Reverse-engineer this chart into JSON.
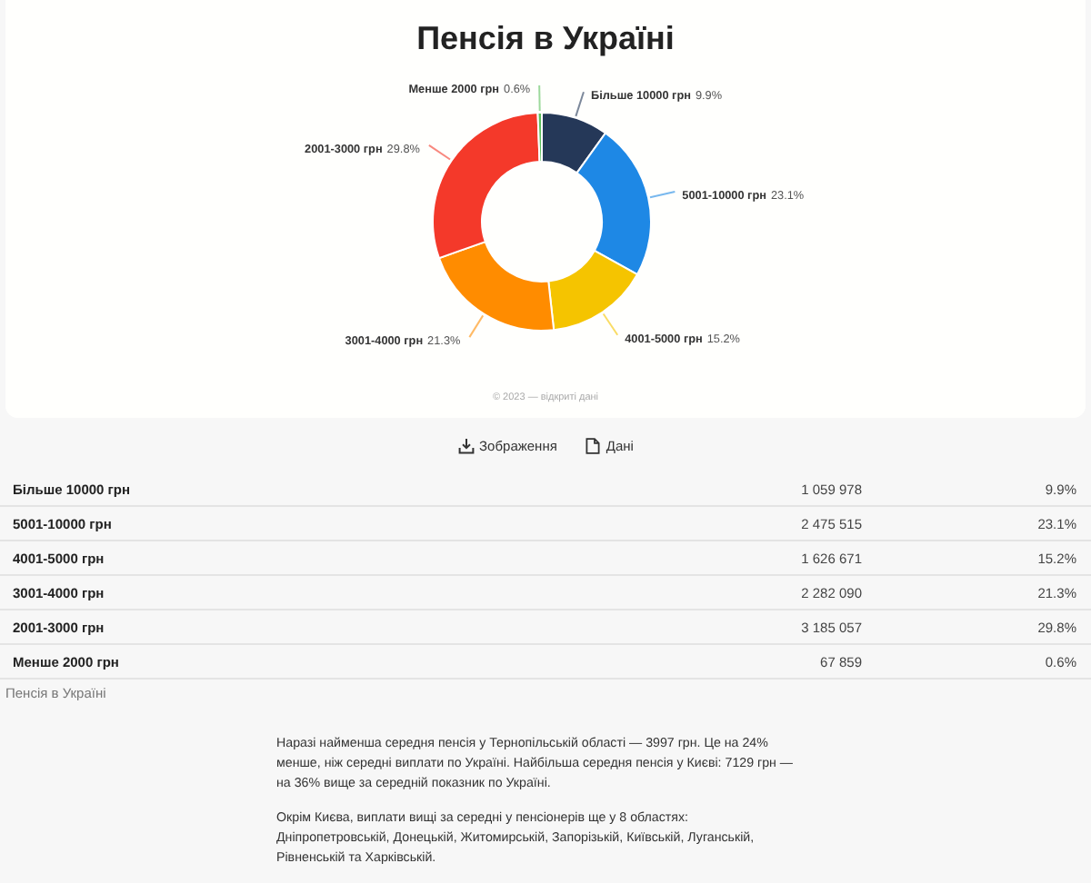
{
  "chart_data": [
    {
      "type": "donut",
      "title": "Пенсія в Україні",
      "categories": [
        "Більше 10000 грн",
        "5001-10000 грн",
        "4001-5000 грн",
        "3001-4000 грн",
        "2001-3000 грн",
        "Менше 2000 грн"
      ],
      "values": [
        9.9,
        23.1,
        15.2,
        21.3,
        29.8,
        0.6
      ],
      "colors": [
        "#253858",
        "#1e88e5",
        "#f5c400",
        "#ff8c00",
        "#f4392a",
        "#5cbf5c"
      ],
      "value_labels": [
        "9.9%",
        "23.1%",
        "15.2%",
        "21.3%",
        "29.8%",
        "0.6%"
      ],
      "annotations": [
        "© 2023 — відкриті дані"
      ]
    },
    {
      "type": "other",
      "categories": [
        "Більше 10000 грн",
        "5001-10000 грн",
        "4001-5000 грн",
        "3001-4000 грн",
        "2001-3000 грн",
        "Менше 2000 грн"
      ],
      "values": [
        1059978,
        2475515,
        1626671,
        2282090,
        3185057,
        67859
      ],
      "data_labels": true,
      "annotations": [
        "Зображення",
        "Дані",
        "Пенсія в Україні",
        "Наразі найменша середня пенсія у Тернопільській області — 3997 грн. Це на 24% менше, ніж середні виплати по Україні. Найбільша середня пенсія у Києві: 7129 грн — на 36% вище за середній показник по Україні.",
        "Окрім Києва, виплати вищі за середні у пенсіонерів ще у 8 областях: Дніпропетровській, Донецькій, Житомирській, Запорізькій, Київській, Луганській, Рівненській та Харківській."
      ]
    }
  ]
}
